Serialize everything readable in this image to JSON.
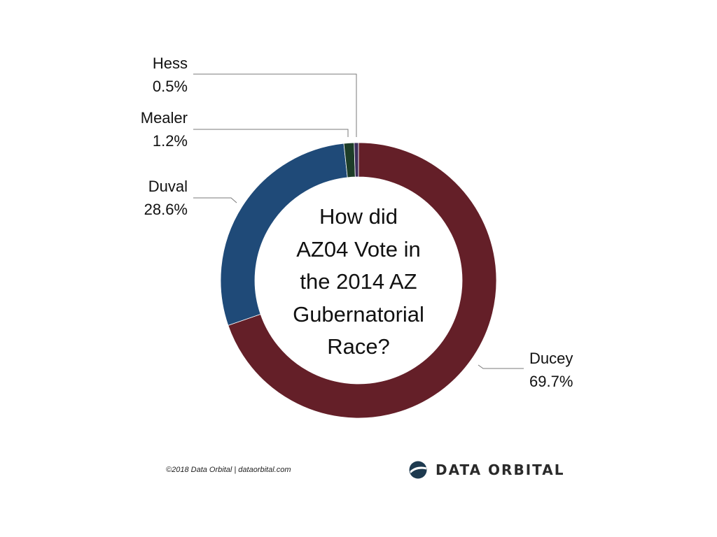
{
  "chart_data": {
    "type": "pie",
    "title_lines": [
      "How did",
      "AZ04 Vote in",
      "the 2014 AZ",
      "Gubernatorial",
      "Race?"
    ],
    "slices": [
      {
        "name": "Ducey",
        "value": 69.7,
        "value_label": "69.7%",
        "color": "#641f28"
      },
      {
        "name": "Duval",
        "value": 28.6,
        "value_label": "28.6%",
        "color": "#1f4a78"
      },
      {
        "name": "Mealer",
        "value": 1.2,
        "value_label": "1.2%",
        "color": "#1d3d28"
      },
      {
        "name": "Hess",
        "value": 0.5,
        "value_label": "0.5%",
        "color": "#3d2e5a"
      }
    ],
    "start_at": "top",
    "direction": "clockwise",
    "donut": true
  },
  "footer": {
    "credit": "©2018 Data Orbital | dataorbital.com",
    "brand_name": "DATA ORBITAL"
  }
}
